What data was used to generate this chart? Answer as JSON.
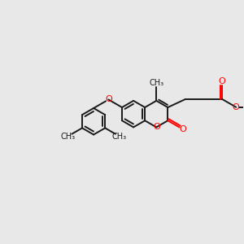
{
  "bg_color": "#e8e8e8",
  "bond_color": "#1a1a1a",
  "oxygen_color": "#ff0000",
  "lw": 1.4,
  "figsize": [
    3.0,
    3.0
  ],
  "dpi": 100,
  "xlim": [
    -5.8,
    4.8
  ],
  "ylim": [
    -3.5,
    2.8
  ]
}
